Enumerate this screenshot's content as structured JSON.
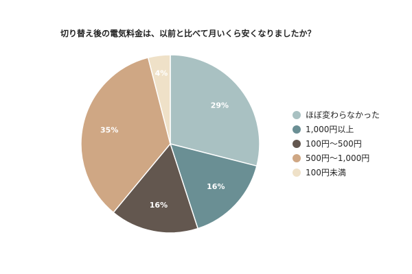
{
  "chart_data": {
    "type": "pie",
    "title": "切り替え後の電気料金は、以前と比べて月いくら安くなりましたか？",
    "slices": [
      {
        "label": "ほぼ変わらなかった",
        "value": 29,
        "display": "29%",
        "color": "#a9c1c2"
      },
      {
        "label": "1,000円以上",
        "value": 16,
        "display": "16%",
        "color": "#6a8f94"
      },
      {
        "label": "100円〜500円",
        "value": 16,
        "display": "16%",
        "color": "#63574f"
      },
      {
        "label": "500円〜1,000円",
        "value": 35,
        "display": "35%",
        "color": "#cfa784"
      },
      {
        "label": "100円未満",
        "value": 4,
        "display": "4%",
        "color": "#efe1c8"
      }
    ],
    "legend_position": "right",
    "start_angle": "top",
    "direction": "clockwise"
  }
}
